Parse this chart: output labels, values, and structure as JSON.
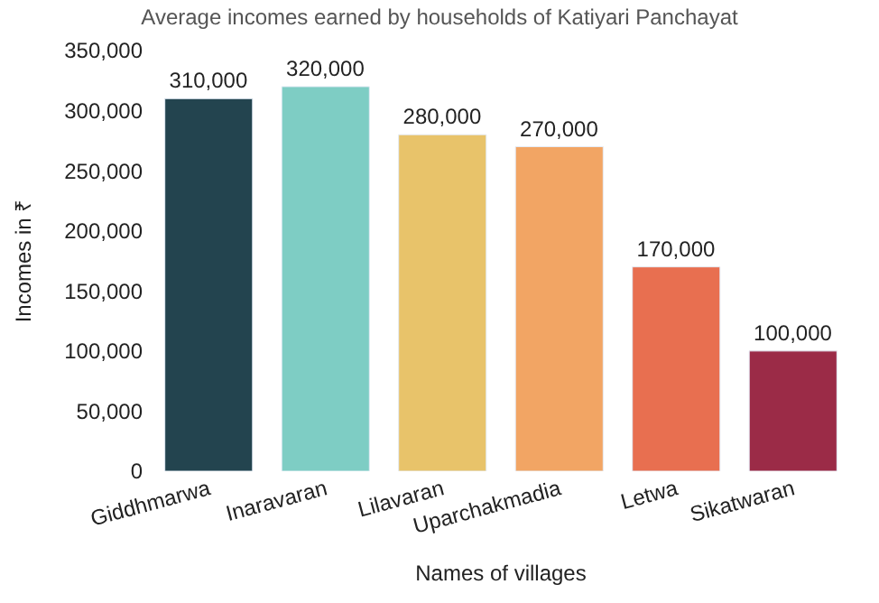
{
  "chart_data": {
    "type": "bar",
    "title": "Average incomes earned by households of Katiyari Panchayat",
    "xlabel": "Names of villages",
    "ylabel": "Incomes in ₹",
    "categories": [
      "Giddhmarwa",
      "Inaravaran",
      "Lilavaran",
      "Uparchakmadia",
      "Letwa",
      "Sikatwaran"
    ],
    "values": [
      310000,
      320000,
      280000,
      270000,
      170000,
      100000
    ],
    "value_labels": [
      "310,000",
      "320,000",
      "280,000",
      "270,000",
      "170,000",
      "100,000"
    ],
    "colors": [
      "#23444f",
      "#7ecdc4",
      "#e8c36a",
      "#f2a564",
      "#e86f50",
      "#9b2b47"
    ],
    "ylim": [
      0,
      350000
    ],
    "yticks": [
      0,
      {
        "value": 50000,
        "label": "50,000"
      },
      {
        "value": 100000,
        "label": "100,000"
      },
      {
        "value": 150000,
        "label": "150,000"
      },
      {
        "value": 200000,
        "label": "200,000"
      },
      {
        "value": 250000,
        "label": "250,000"
      },
      {
        "value": 300000,
        "label": "300,000"
      },
      {
        "value": 350000,
        "label": "350,000"
      }
    ],
    "data_labels": false
  }
}
